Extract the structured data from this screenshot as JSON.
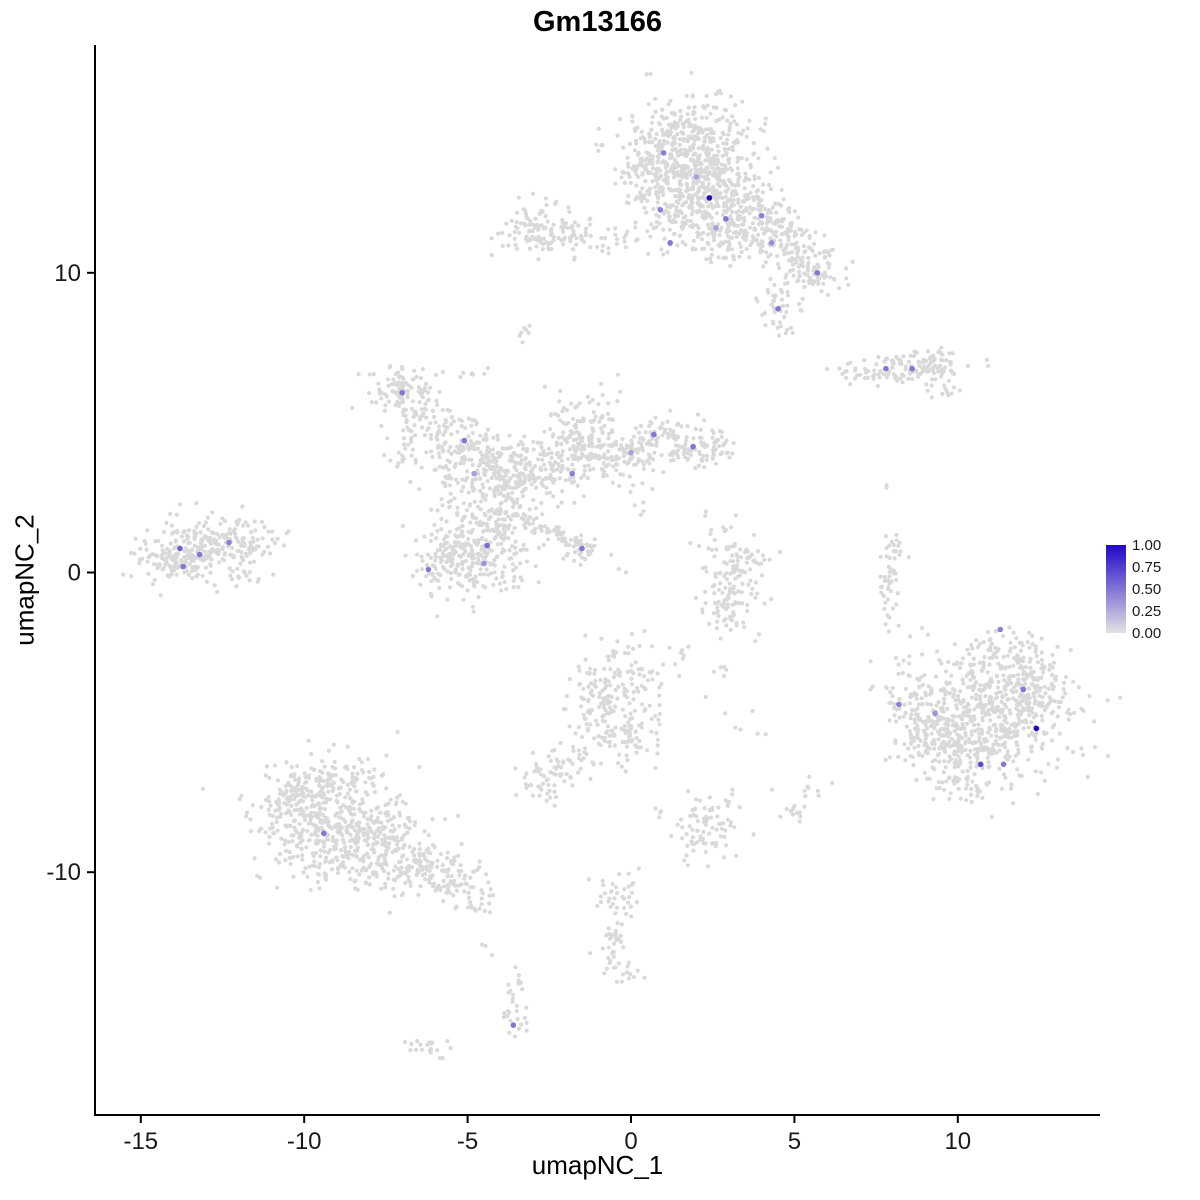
{
  "title": "Gm13166",
  "axes": {
    "x_label": "umapNC_1",
    "y_label": "umapNC_2"
  },
  "legend": {
    "labels": [
      "1.00",
      "0.75",
      "0.50",
      "0.25",
      "0.00"
    ]
  },
  "colors": {
    "point_gray": "#D9D9D9",
    "axis": "#000000",
    "text": "#1a1a1a"
  },
  "chart_data": {
    "type": "scatter",
    "title": "Gm13166",
    "xlabel": "umapNC_1",
    "ylabel": "umapNC_2",
    "xlim": [
      -16.4,
      14.35
    ],
    "ylim": [
      -18.1,
      17.6
    ],
    "x_ticks": [
      -15,
      -10,
      -5,
      0,
      5,
      10
    ],
    "y_ticks": [
      -10,
      0,
      10
    ],
    "grid": false,
    "legend_position": "right",
    "color_scale": {
      "low": "#E3E3E3",
      "high": "#2008C8",
      "domain": [
        0,
        1
      ]
    },
    "background_cluster_format": [
      "center_x",
      "center_y",
      "sd_x",
      "sd_y",
      "n_points",
      "rotation_deg"
    ],
    "background_clusters": [
      [
        1.8,
        14.2,
        1.0,
        0.85,
        400
      ],
      [
        0.9,
        13.3,
        0.6,
        0.6,
        120
      ],
      [
        2.5,
        12.7,
        0.8,
        0.75,
        240
      ],
      [
        3.4,
        11.8,
        0.65,
        0.6,
        150
      ],
      [
        4.5,
        11.2,
        0.55,
        0.5,
        80
      ],
      [
        5.3,
        10.3,
        0.5,
        0.5,
        90
      ],
      [
        4.6,
        8.8,
        0.35,
        0.45,
        40
      ],
      [
        5.9,
        9.7,
        0.3,
        0.25,
        18
      ],
      [
        1.1,
        11.9,
        0.5,
        0.7,
        70
      ],
      [
        2.6,
        10.9,
        0.5,
        0.4,
        40
      ],
      [
        -2.8,
        11.4,
        0.55,
        0.45,
        90
      ],
      [
        -1.8,
        11.2,
        0.5,
        0.3,
        40
      ],
      [
        -0.6,
        11.1,
        0.7,
        0.25,
        22
      ],
      [
        -3.2,
        8.1,
        0.15,
        0.2,
        7
      ],
      [
        -4.9,
        6.6,
        0.2,
        0.15,
        7
      ],
      [
        -0.7,
        5.5,
        0.25,
        0.45,
        16
      ],
      [
        8.3,
        6.8,
        0.85,
        0.25,
        80
      ],
      [
        9.3,
        7.0,
        0.4,
        0.28,
        40
      ],
      [
        7.0,
        6.6,
        0.45,
        0.2,
        22
      ],
      [
        9.7,
        6.1,
        0.3,
        0.18,
        12
      ],
      [
        7.8,
        2.9,
        0.06,
        0.06,
        2
      ],
      [
        -7.0,
        6.0,
        0.55,
        0.5,
        100
      ],
      [
        -6.3,
        5.2,
        0.4,
        0.4,
        45
      ],
      [
        -5.4,
        4.4,
        0.5,
        0.5,
        70
      ],
      [
        -4.5,
        3.6,
        0.6,
        0.55,
        120
      ],
      [
        -3.6,
        3.2,
        0.6,
        0.5,
        110
      ],
      [
        -2.5,
        3.4,
        0.6,
        0.5,
        100
      ],
      [
        -1.6,
        4.7,
        0.5,
        0.55,
        100
      ],
      [
        -1.0,
        3.8,
        0.4,
        0.4,
        55
      ],
      [
        0.0,
        4.0,
        0.5,
        0.4,
        65
      ],
      [
        1.2,
        4.4,
        0.6,
        0.4,
        85
      ],
      [
        2.2,
        4.1,
        0.5,
        0.35,
        55
      ],
      [
        -4.7,
        0.6,
        0.8,
        0.75,
        250
      ],
      [
        -5.8,
        0.2,
        0.5,
        0.45,
        60
      ],
      [
        -3.9,
        1.9,
        0.4,
        0.5,
        55
      ],
      [
        -2.3,
        1.3,
        0.95,
        0.14,
        65,
        -28
      ],
      [
        -1.5,
        0.8,
        0.3,
        0.3,
        28
      ],
      [
        -5.6,
        2.7,
        0.35,
        0.55,
        30
      ],
      [
        -6.9,
        4.1,
        0.3,
        0.5,
        22
      ],
      [
        -13.4,
        0.7,
        0.85,
        0.55,
        220
      ],
      [
        -12.2,
        1.0,
        0.5,
        0.4,
        55
      ],
      [
        -14.2,
        0.3,
        0.4,
        0.3,
        35
      ],
      [
        -11.6,
        0.6,
        0.4,
        0.5,
        28
      ],
      [
        -10.8,
        1.2,
        0.25,
        0.25,
        7
      ],
      [
        3.1,
        -0.4,
        0.5,
        0.65,
        85
      ],
      [
        3.5,
        0.5,
        0.4,
        0.35,
        35
      ],
      [
        2.8,
        -1.4,
        0.4,
        0.28,
        26
      ],
      [
        2.6,
        1.2,
        0.3,
        0.4,
        14
      ],
      [
        7.9,
        -0.2,
        0.16,
        0.75,
        42
      ],
      [
        8.1,
        0.9,
        0.14,
        0.3,
        11
      ],
      [
        11.0,
        -4.8,
        1.25,
        1.15,
        560
      ],
      [
        12.2,
        -3.9,
        0.6,
        0.55,
        90
      ],
      [
        9.7,
        -5.8,
        0.7,
        0.55,
        100
      ],
      [
        9.0,
        -4.6,
        0.5,
        0.7,
        70
      ],
      [
        8.4,
        -4.2,
        0.3,
        0.6,
        30
      ],
      [
        11.4,
        -2.7,
        0.6,
        0.4,
        55
      ],
      [
        10.1,
        -7.1,
        0.5,
        0.3,
        35
      ],
      [
        -0.4,
        -3.6,
        0.7,
        0.65,
        120
      ],
      [
        -0.9,
        -5.0,
        0.5,
        0.6,
        75
      ],
      [
        0.2,
        -5.5,
        0.4,
        0.5,
        45
      ],
      [
        -2.6,
        -6.9,
        0.45,
        0.4,
        55
      ],
      [
        -1.7,
        -6.1,
        0.4,
        0.35,
        22
      ],
      [
        1.4,
        -2.8,
        0.2,
        0.15,
        7
      ],
      [
        2.9,
        -3.3,
        0.15,
        0.15,
        5
      ],
      [
        3.6,
        -5.2,
        0.3,
        0.3,
        6
      ],
      [
        -9.3,
        -8.3,
        1.1,
        0.95,
        400
      ],
      [
        -8.0,
        -9.2,
        0.9,
        0.7,
        190
      ],
      [
        -6.5,
        -9.8,
        0.7,
        0.5,
        100
      ],
      [
        -5.4,
        -10.3,
        0.5,
        0.4,
        55
      ],
      [
        -10.3,
        -7.5,
        0.5,
        0.5,
        65
      ],
      [
        -9.0,
        -6.8,
        0.6,
        0.3,
        35
      ],
      [
        -4.8,
        -11.0,
        0.3,
        0.3,
        18
      ],
      [
        2.3,
        -8.7,
        0.5,
        0.5,
        65
      ],
      [
        2.9,
        -7.9,
        0.3,
        0.28,
        18
      ],
      [
        -0.3,
        -10.9,
        0.4,
        0.5,
        38
      ],
      [
        -0.6,
        -12.3,
        0.25,
        0.5,
        28
      ],
      [
        -0.2,
        -13.3,
        0.3,
        0.28,
        14
      ],
      [
        -3.5,
        -13.8,
        0.2,
        0.4,
        14
      ],
      [
        -3.6,
        -14.9,
        0.25,
        0.35,
        17
      ],
      [
        -6.1,
        -15.8,
        0.45,
        0.2,
        20
      ],
      [
        4.9,
        -7.8,
        0.25,
        0.3,
        13
      ],
      [
        5.6,
        -7.2,
        0.2,
        0.2,
        7
      ],
      [
        0.8,
        -8.0,
        0.15,
        0.15,
        4
      ],
      [
        -4.4,
        -12.6,
        0.12,
        0.12,
        3
      ],
      [
        0.4,
        2.6,
        0.2,
        0.3,
        9
      ]
    ],
    "expressing_cells": [
      {
        "x": 1.0,
        "y": 14.0,
        "value": 0.45
      },
      {
        "x": 2.0,
        "y": 13.2,
        "value": 0.3
      },
      {
        "x": 2.4,
        "y": 12.5,
        "value": 1.0
      },
      {
        "x": 2.9,
        "y": 11.8,
        "value": 0.5
      },
      {
        "x": 2.6,
        "y": 11.5,
        "value": 0.3
      },
      {
        "x": 4.0,
        "y": 11.9,
        "value": 0.45
      },
      {
        "x": 4.3,
        "y": 11.0,
        "value": 0.4
      },
      {
        "x": 5.7,
        "y": 10.0,
        "value": 0.5
      },
      {
        "x": 4.5,
        "y": 8.8,
        "value": 0.5
      },
      {
        "x": 0.9,
        "y": 12.1,
        "value": 0.45
      },
      {
        "x": 1.2,
        "y": 11.0,
        "value": 0.5
      },
      {
        "x": 7.8,
        "y": 6.8,
        "value": 0.5
      },
      {
        "x": 8.6,
        "y": 6.8,
        "value": 0.5
      },
      {
        "x": -7.0,
        "y": 6.0,
        "value": 0.5
      },
      {
        "x": -5.1,
        "y": 4.4,
        "value": 0.5
      },
      {
        "x": -4.8,
        "y": 3.3,
        "value": 0.3
      },
      {
        "x": 0.7,
        "y": 4.6,
        "value": 0.5
      },
      {
        "x": 1.9,
        "y": 4.2,
        "value": 0.5
      },
      {
        "x": 0.0,
        "y": 4.0,
        "value": 0.3
      },
      {
        "x": -1.8,
        "y": 3.3,
        "value": 0.45
      },
      {
        "x": -1.5,
        "y": 0.8,
        "value": 0.5
      },
      {
        "x": -4.4,
        "y": 0.9,
        "value": 0.55
      },
      {
        "x": -4.5,
        "y": 0.3,
        "value": 0.35
      },
      {
        "x": -6.2,
        "y": 0.1,
        "value": 0.5
      },
      {
        "x": -13.8,
        "y": 0.8,
        "value": 0.6
      },
      {
        "x": -13.2,
        "y": 0.6,
        "value": 0.5
      },
      {
        "x": -13.7,
        "y": 0.2,
        "value": 0.5
      },
      {
        "x": -12.3,
        "y": 1.0,
        "value": 0.45
      },
      {
        "x": 11.3,
        "y": -1.9,
        "value": 0.45
      },
      {
        "x": 12.0,
        "y": -3.9,
        "value": 0.5
      },
      {
        "x": 12.4,
        "y": -5.2,
        "value": 1.0
      },
      {
        "x": 10.7,
        "y": -6.4,
        "value": 0.7
      },
      {
        "x": 11.4,
        "y": -6.4,
        "value": 0.5
      },
      {
        "x": 8.2,
        "y": -4.4,
        "value": 0.45
      },
      {
        "x": 9.3,
        "y": -4.7,
        "value": 0.35
      },
      {
        "x": -9.4,
        "y": -8.7,
        "value": 0.5
      },
      {
        "x": -3.6,
        "y": -15.1,
        "value": 0.5
      }
    ]
  }
}
